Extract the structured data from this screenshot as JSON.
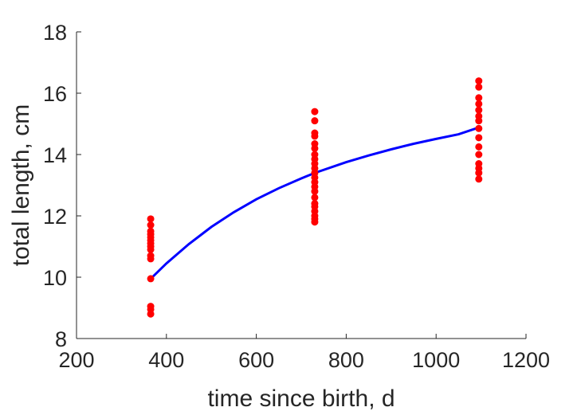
{
  "chart_data": {
    "type": "scatter",
    "title": "",
    "xlabel": "time since birth, d",
    "ylabel": "total length, cm",
    "xlim": [
      200,
      1200
    ],
    "ylim": [
      8,
      18
    ],
    "xticks": [
      200,
      400,
      600,
      800,
      1000,
      1200
    ],
    "yticks": [
      8,
      10,
      12,
      14,
      16,
      18
    ],
    "xtick_labels": [
      "200",
      "400",
      "600",
      "800",
      "1000",
      "1200"
    ],
    "ytick_labels": [
      "8",
      "10",
      "12",
      "14",
      "16",
      "18"
    ],
    "grid": false,
    "legend": "none",
    "series": [
      {
        "kind": "scatter",
        "color": "#ff0000",
        "points": [
          {
            "x": 365,
            "y": 11.9
          },
          {
            "x": 365,
            "y": 11.7
          },
          {
            "x": 365,
            "y": 11.5
          },
          {
            "x": 365,
            "y": 11.4
          },
          {
            "x": 365,
            "y": 11.3
          },
          {
            "x": 365,
            "y": 11.2
          },
          {
            "x": 365,
            "y": 11.1
          },
          {
            "x": 365,
            "y": 11.0
          },
          {
            "x": 365,
            "y": 10.9
          },
          {
            "x": 365,
            "y": 10.7
          },
          {
            "x": 365,
            "y": 10.6
          },
          {
            "x": 365,
            "y": 9.95
          },
          {
            "x": 365,
            "y": 9.05
          },
          {
            "x": 365,
            "y": 8.95
          },
          {
            "x": 365,
            "y": 8.8
          },
          {
            "x": 730,
            "y": 15.4
          },
          {
            "x": 730,
            "y": 15.1
          },
          {
            "x": 730,
            "y": 14.7
          },
          {
            "x": 730,
            "y": 14.6
          },
          {
            "x": 730,
            "y": 14.35
          },
          {
            "x": 730,
            "y": 14.2
          },
          {
            "x": 730,
            "y": 14.0
          },
          {
            "x": 730,
            "y": 13.85
          },
          {
            "x": 730,
            "y": 13.7
          },
          {
            "x": 730,
            "y": 13.55
          },
          {
            "x": 730,
            "y": 13.4
          },
          {
            "x": 730,
            "y": 13.25
          },
          {
            "x": 730,
            "y": 13.1
          },
          {
            "x": 730,
            "y": 12.95
          },
          {
            "x": 730,
            "y": 12.8
          },
          {
            "x": 730,
            "y": 12.6
          },
          {
            "x": 730,
            "y": 12.4
          },
          {
            "x": 730,
            "y": 12.3
          },
          {
            "x": 730,
            "y": 12.15
          },
          {
            "x": 730,
            "y": 12.0
          },
          {
            "x": 730,
            "y": 11.9
          },
          {
            "x": 730,
            "y": 11.8
          },
          {
            "x": 1095,
            "y": 16.4
          },
          {
            "x": 1095,
            "y": 16.2
          },
          {
            "x": 1095,
            "y": 15.85
          },
          {
            "x": 1095,
            "y": 15.65
          },
          {
            "x": 1095,
            "y": 15.45
          },
          {
            "x": 1095,
            "y": 15.25
          },
          {
            "x": 1095,
            "y": 15.1
          },
          {
            "x": 1095,
            "y": 14.85
          },
          {
            "x": 1095,
            "y": 14.55
          },
          {
            "x": 1095,
            "y": 14.25
          },
          {
            "x": 1095,
            "y": 14.0
          },
          {
            "x": 1095,
            "y": 13.7
          },
          {
            "x": 1095,
            "y": 13.55
          },
          {
            "x": 1095,
            "y": 13.4
          },
          {
            "x": 1095,
            "y": 13.2
          }
        ]
      },
      {
        "kind": "line",
        "color": "#0000ff",
        "x": [
          365,
          400,
          450,
          500,
          550,
          600,
          650,
          700,
          730,
          800,
          850,
          900,
          950,
          1000,
          1050,
          1095
        ],
        "y": [
          9.95,
          10.45,
          11.08,
          11.64,
          12.12,
          12.54,
          12.9,
          13.22,
          13.4,
          13.75,
          13.97,
          14.17,
          14.35,
          14.51,
          14.66,
          14.88
        ]
      }
    ]
  }
}
